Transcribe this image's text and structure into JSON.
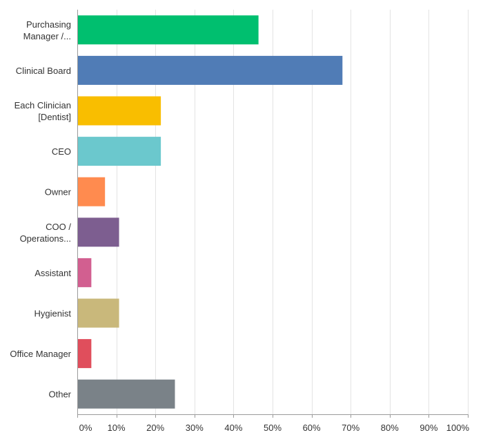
{
  "chart_data": {
    "type": "bar",
    "orientation": "horizontal",
    "categories": [
      [
        "Purchasing",
        "Manager /..."
      ],
      [
        "Clinical Board"
      ],
      [
        "Each Clinician",
        "[Dentist]"
      ],
      [
        "CEO"
      ],
      [
        "Owner"
      ],
      [
        "COO /",
        "Operations..."
      ],
      [
        "Assistant"
      ],
      [
        "Hygienist"
      ],
      [
        "Office Manager"
      ],
      [
        "Other"
      ]
    ],
    "values": [
      46.4,
      67.9,
      21.4,
      21.4,
      7.1,
      10.7,
      3.6,
      10.7,
      3.6,
      25.0
    ],
    "colors": [
      "#00bf6f",
      "#507cb6",
      "#f9be00",
      "#6bc8cd",
      "#ff8b4f",
      "#7d5e90",
      "#d25f90",
      "#c9b87b",
      "#e04e5c",
      "#7a8288"
    ],
    "xlim": [
      0,
      100
    ],
    "xticks": [
      "0%",
      "10%",
      "20%",
      "30%",
      "40%",
      "50%",
      "60%",
      "70%",
      "80%",
      "90%",
      "100%"
    ],
    "grid": true,
    "legend": "none",
    "title": "",
    "xlabel": "",
    "ylabel": ""
  }
}
